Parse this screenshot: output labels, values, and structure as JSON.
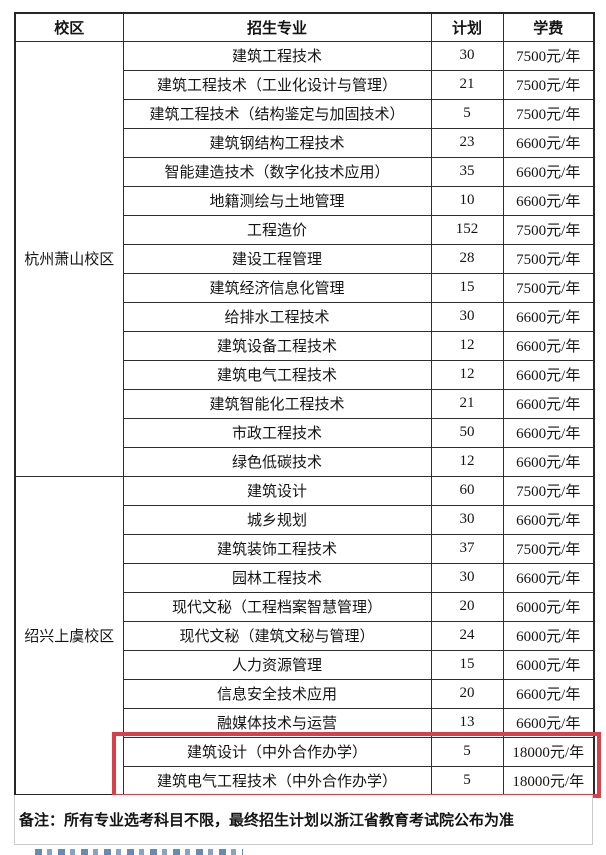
{
  "table": {
    "headers": {
      "campus": "校区",
      "major": "招生专业",
      "plan": "计划",
      "tuition": "学费"
    },
    "sections": [
      {
        "campus": "杭州萧山校区",
        "rows": [
          {
            "major": "建筑工程技术",
            "plan": "30",
            "tuition": "7500元/年",
            "highlight": false
          },
          {
            "major": "建筑工程技术（工业化设计与管理）",
            "plan": "21",
            "tuition": "7500元/年",
            "highlight": false
          },
          {
            "major": "建筑工程技术（结构鉴定与加固技术）",
            "plan": "5",
            "tuition": "7500元/年",
            "highlight": false
          },
          {
            "major": "建筑钢结构工程技术",
            "plan": "23",
            "tuition": "6600元/年",
            "highlight": false
          },
          {
            "major": "智能建造技术（数字化技术应用）",
            "plan": "35",
            "tuition": "6600元/年",
            "highlight": false
          },
          {
            "major": "地籍测绘与土地管理",
            "plan": "10",
            "tuition": "6600元/年",
            "highlight": false
          },
          {
            "major": "工程造价",
            "plan": "152",
            "tuition": "7500元/年",
            "highlight": false
          },
          {
            "major": "建设工程管理",
            "plan": "28",
            "tuition": "7500元/年",
            "highlight": false
          },
          {
            "major": "建筑经济信息化管理",
            "plan": "15",
            "tuition": "7500元/年",
            "highlight": false
          },
          {
            "major": "给排水工程技术",
            "plan": "30",
            "tuition": "6600元/年",
            "highlight": false
          },
          {
            "major": "建筑设备工程技术",
            "plan": "12",
            "tuition": "6600元/年",
            "highlight": false
          },
          {
            "major": "建筑电气工程技术",
            "plan": "12",
            "tuition": "6600元/年",
            "highlight": false
          },
          {
            "major": "建筑智能化工程技术",
            "plan": "21",
            "tuition": "6600元/年",
            "highlight": false
          },
          {
            "major": "市政工程技术",
            "plan": "50",
            "tuition": "6600元/年",
            "highlight": false
          },
          {
            "major": "绿色低碳技术",
            "plan": "12",
            "tuition": "6600元/年",
            "highlight": false
          }
        ]
      },
      {
        "campus": "绍兴上虞校区",
        "rows": [
          {
            "major": "建筑设计",
            "plan": "60",
            "tuition": "7500元/年",
            "highlight": false
          },
          {
            "major": "城乡规划",
            "plan": "30",
            "tuition": "6600元/年",
            "highlight": false
          },
          {
            "major": "建筑装饰工程技术",
            "plan": "37",
            "tuition": "7500元/年",
            "highlight": false
          },
          {
            "major": "园林工程技术",
            "plan": "30",
            "tuition": "6600元/年",
            "highlight": false
          },
          {
            "major": "现代文秘（工程档案智慧管理）",
            "plan": "20",
            "tuition": "6000元/年",
            "highlight": false
          },
          {
            "major": "现代文秘（建筑文秘与管理）",
            "plan": "24",
            "tuition": "6000元/年",
            "highlight": false
          },
          {
            "major": "人力资源管理",
            "plan": "15",
            "tuition": "6000元/年",
            "highlight": false
          },
          {
            "major": "信息安全技术应用",
            "plan": "20",
            "tuition": "6600元/年",
            "highlight": false
          },
          {
            "major": "融媒体技术与运营",
            "plan": "13",
            "tuition": "6600元/年",
            "highlight": false
          },
          {
            "major": "建筑设计（中外合作办学）",
            "plan": "5",
            "tuition": "18000元/年",
            "highlight": true
          },
          {
            "major": "建筑电气工程技术（中外合作办学）",
            "plan": "5",
            "tuition": "18000元/年",
            "highlight": true
          }
        ]
      }
    ]
  },
  "note": "备注：所有专业选考科目不限，最终招生计划以浙江省教育考试院公布为准",
  "colors": {
    "highlight_border": "#d9414a",
    "table_border": "#2e2e2e",
    "note_border": "#cccccc",
    "link_blue": "#4a76ab"
  }
}
